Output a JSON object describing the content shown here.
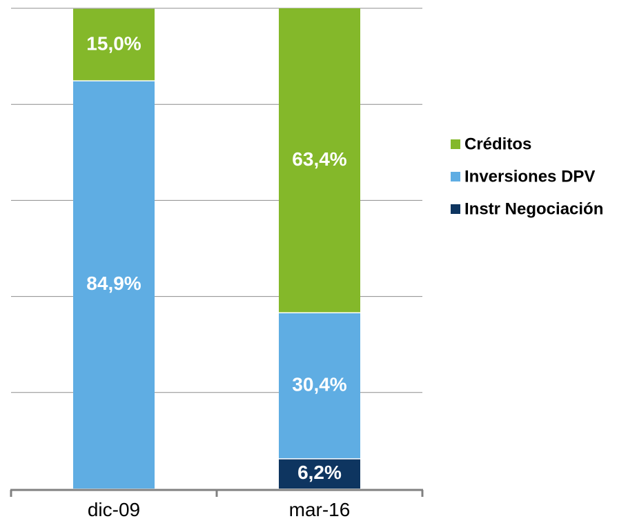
{
  "chart_data": {
    "type": "bar",
    "stacked": true,
    "categories": [
      "dic-09",
      "mar-16"
    ],
    "series": [
      {
        "name": "Instr Negociación",
        "color": "#0e3560",
        "values": [
          0,
          6.2
        ],
        "labels": [
          "",
          "6,2%"
        ]
      },
      {
        "name": "Inversiones DPV",
        "color": "#5fade3",
        "values": [
          84.9,
          30.4
        ],
        "labels": [
          "84,9%",
          "30,4%"
        ]
      },
      {
        "name": "Créditos",
        "color": "#84b82a",
        "values": [
          15.0,
          63.4
        ],
        "labels": [
          "15,0%",
          "63,4%"
        ]
      }
    ],
    "legend_order": [
      "Créditos",
      "Inversiones DPV",
      "Instr Negociación"
    ],
    "ylim": [
      0,
      100
    ],
    "grid": true,
    "legend_position": "right",
    "title": "",
    "xlabel": "",
    "ylabel": ""
  }
}
